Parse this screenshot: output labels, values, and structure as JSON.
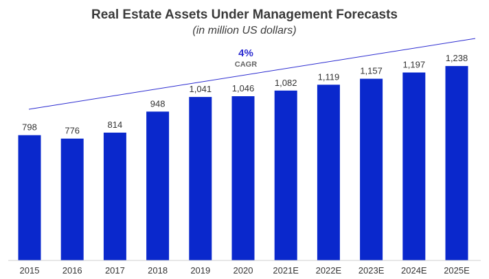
{
  "chart_data": {
    "type": "bar",
    "title": "Real Estate Assets Under Management Forecasts",
    "subtitle": "(in million US dollars)",
    "categories": [
      "2015",
      "2016",
      "2017",
      "2018",
      "2019",
      "2020",
      "2021E",
      "2022E",
      "2023E",
      "2024E",
      "2025E"
    ],
    "values": [
      798,
      776,
      814,
      948,
      1041,
      1046,
      1082,
      1119,
      1157,
      1197,
      1238
    ],
    "value_labels": [
      "798",
      "776",
      "814",
      "948",
      "1,041",
      "1,046",
      "1,082",
      "1,119",
      "1,157",
      "1,197",
      "1,238"
    ],
    "ylim": [
      0,
      1400
    ],
    "grid": false,
    "bar_color": "#0a28cc",
    "trend_color": "#2a2ad0",
    "annotation": {
      "value": "4%",
      "label": "CAGR"
    }
  }
}
